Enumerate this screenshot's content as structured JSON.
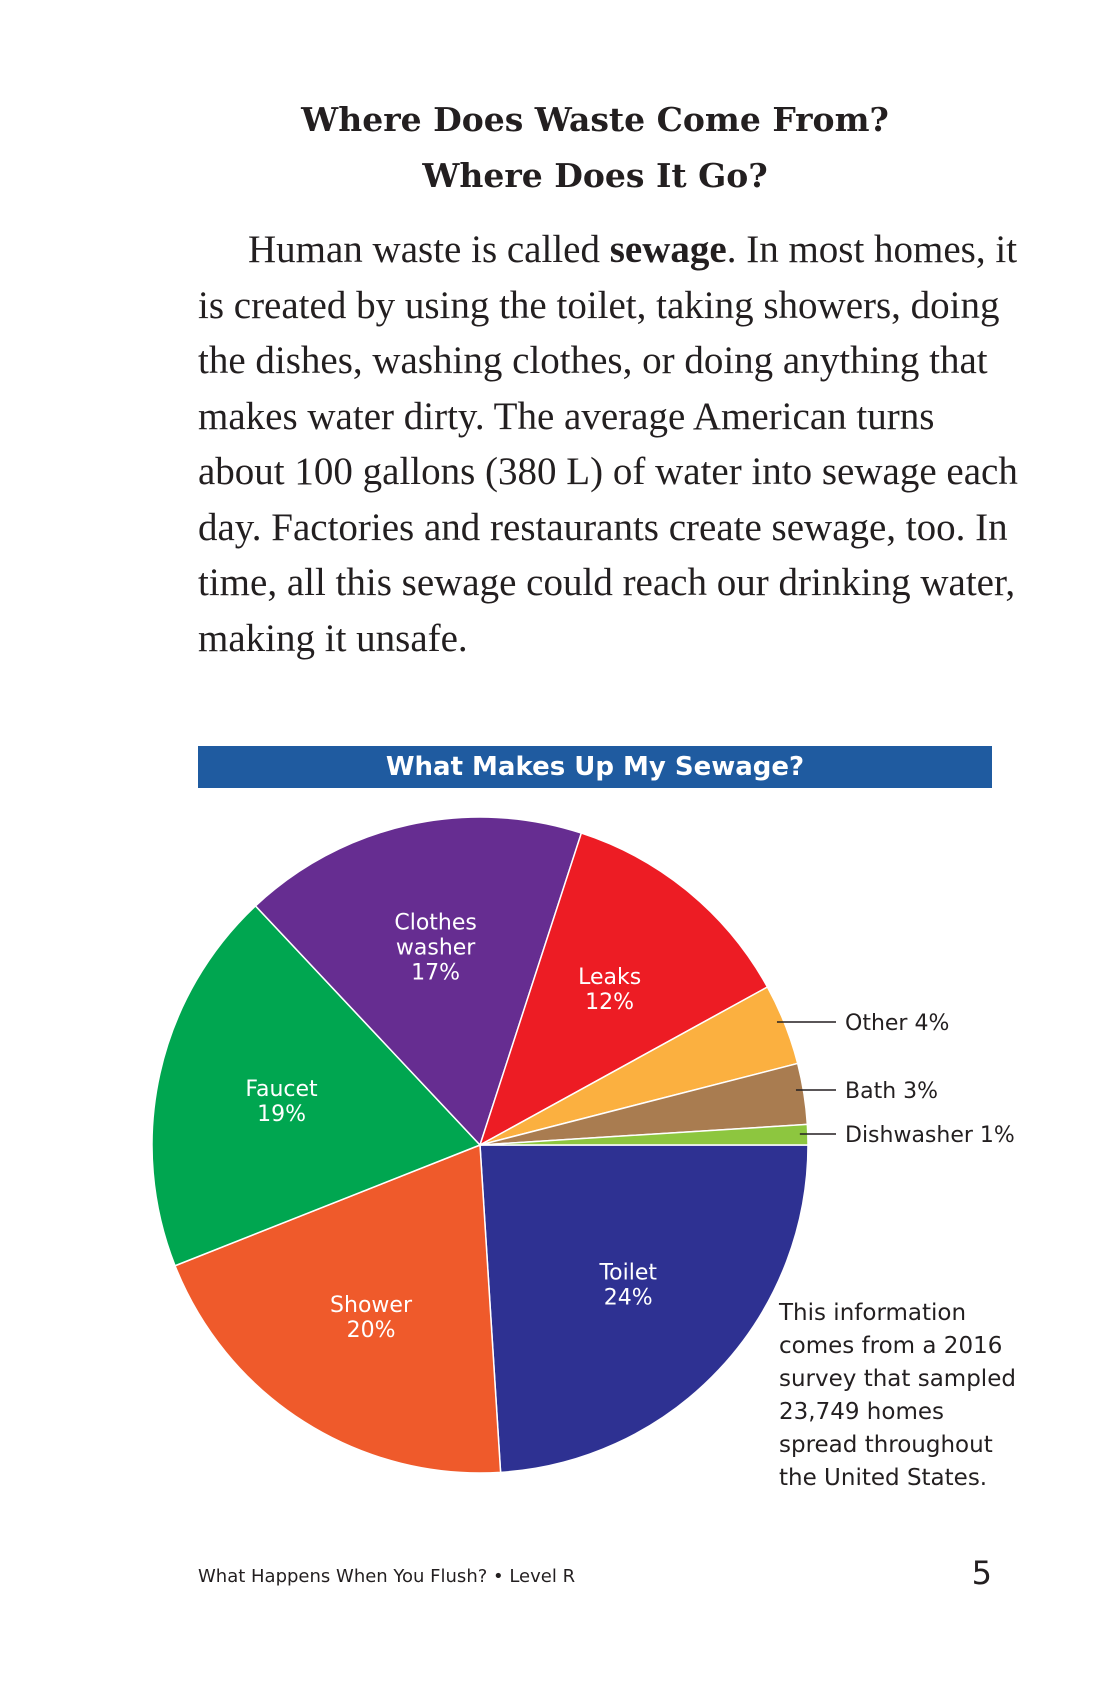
{
  "heading": {
    "line1": "Where Does Waste Come From?",
    "line2": "Where Does It Go?"
  },
  "paragraph": {
    "before_bold": "Human waste is called ",
    "bold_term": "sewage",
    "after_bold": ". In most homes, it is created by using the toilet, taking showers, doing the dishes, washing clothes, or doing anything that makes water dirty. The average American turns about 100 gallons (380 L) of water into sewage each day. Factories and restaurants create sewage, too. In time, all this sewage could reach our drinking water, making it unsafe."
  },
  "chart_data": {
    "type": "pie",
    "title": "What Makes Up My Sewage?",
    "slices": [
      {
        "label": "Toilet",
        "value": 24,
        "color": "#2e3192",
        "label_lines": [
          "Toilet",
          "24%"
        ],
        "callout": false
      },
      {
        "label": "Shower",
        "value": 20,
        "color": "#ef5a2b",
        "label_lines": [
          "Shower",
          "20%"
        ],
        "callout": false
      },
      {
        "label": "Faucet",
        "value": 19,
        "color": "#00a650",
        "label_lines": [
          "Faucet",
          "19%"
        ],
        "callout": false
      },
      {
        "label": "Clothes washer",
        "value": 17,
        "color": "#662d91",
        "label_lines": [
          "Clothes",
          "washer",
          "17%"
        ],
        "callout": false
      },
      {
        "label": "Leaks",
        "value": 12,
        "color": "#ed1c24",
        "label_lines": [
          "Leaks",
          "12%"
        ],
        "callout": false
      },
      {
        "label": "Other",
        "value": 4,
        "color": "#fbb040",
        "label_lines": [
          "Other 4%"
        ],
        "callout": true
      },
      {
        "label": "Bath",
        "value": 3,
        "color": "#a97c50",
        "label_lines": [
          "Bath 3%"
        ],
        "callout": true
      },
      {
        "label": "Dishwasher",
        "value": 1,
        "color": "#8dc63f",
        "label_lines": [
          "Dishwasher 1%"
        ],
        "callout": true
      }
    ],
    "start": "3 o'clock",
    "direction": "clockwise",
    "banner_color": "#1f5ba0"
  },
  "note": "This information comes from a 2016 survey that sampled 23,749 homes spread throughout the United States.",
  "footer": {
    "book_title": "What Happens When You Flush? • Level R",
    "page_number": "5"
  }
}
